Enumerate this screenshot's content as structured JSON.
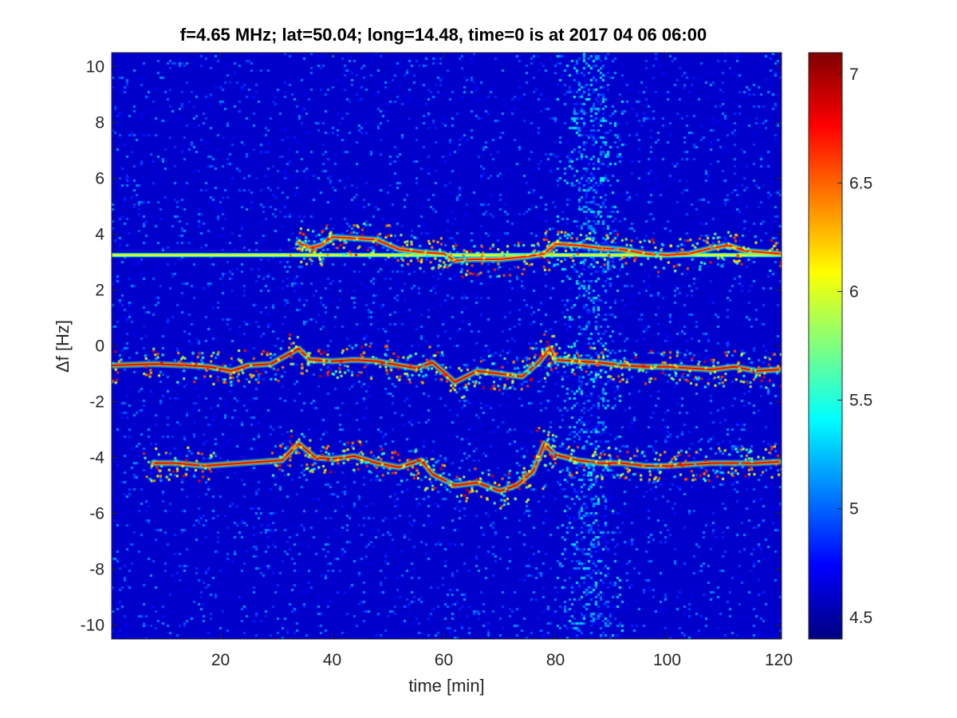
{
  "chart_data": {
    "type": "heatmap",
    "title": "f=4.65 MHz;  lat=50.04; long=14.48, time=0 is at 2017 04 06 06:00",
    "xlabel": "time [min]",
    "ylabel": "Δf [Hz]",
    "xlim": [
      0.5,
      120.5
    ],
    "ylim": [
      -10.5,
      10.5
    ],
    "x_ticks": [
      20,
      40,
      60,
      80,
      100,
      120
    ],
    "y_ticks": [
      -10,
      -8,
      -6,
      -4,
      -2,
      0,
      2,
      4,
      6,
      8,
      10
    ],
    "x_tick_labels": [
      "20",
      "40",
      "60",
      "80",
      "100",
      "120"
    ],
    "y_tick_labels": [
      "-10",
      "-8",
      "-6",
      "-4",
      "-2",
      "0",
      "2",
      "4",
      "6",
      "8",
      "10"
    ],
    "colorbar": {
      "colormap": "jet",
      "range": [
        4.4,
        7.1
      ],
      "ticks": [
        4.5,
        5,
        5.5,
        6,
        6.5,
        7
      ],
      "tick_labels": [
        "4.5",
        "5",
        "5.5",
        "6",
        "6.5",
        "7"
      ]
    },
    "background_value": 4.6,
    "features": [
      {
        "name": "constant line",
        "value": 6.0,
        "points": [
          [
            0.5,
            3.25
          ],
          [
            120.5,
            3.25
          ]
        ]
      },
      {
        "name": "upper trace",
        "value": 6.8,
        "points": [
          [
            34,
            3.7
          ],
          [
            36,
            3.5
          ],
          [
            38,
            3.6
          ],
          [
            40,
            3.9
          ],
          [
            44,
            3.85
          ],
          [
            48,
            3.8
          ],
          [
            52,
            3.45
          ],
          [
            56,
            3.35
          ],
          [
            60,
            3.3
          ],
          [
            62,
            3.05
          ],
          [
            65,
            3.1
          ],
          [
            70,
            3.1
          ],
          [
            75,
            3.2
          ],
          [
            78,
            3.3
          ],
          [
            80,
            3.65
          ],
          [
            84,
            3.6
          ],
          [
            88,
            3.5
          ],
          [
            92,
            3.45
          ],
          [
            96,
            3.3
          ],
          [
            100,
            3.25
          ],
          [
            104,
            3.3
          ],
          [
            108,
            3.5
          ],
          [
            111,
            3.6
          ],
          [
            114,
            3.4
          ],
          [
            120,
            3.3
          ]
        ]
      },
      {
        "name": "middle trace",
        "value": 6.9,
        "points": [
          [
            0.5,
            -0.7
          ],
          [
            8,
            -0.65
          ],
          [
            14,
            -0.7
          ],
          [
            18,
            -0.75
          ],
          [
            22,
            -0.9
          ],
          [
            25,
            -0.7
          ],
          [
            29,
            -0.65
          ],
          [
            34,
            -0.1
          ],
          [
            36,
            -0.5
          ],
          [
            40,
            -0.55
          ],
          [
            44,
            -0.5
          ],
          [
            48,
            -0.55
          ],
          [
            52,
            -0.7
          ],
          [
            55,
            -0.8
          ],
          [
            58,
            -0.6
          ],
          [
            62,
            -1.3
          ],
          [
            66,
            -0.9
          ],
          [
            70,
            -1.0
          ],
          [
            74,
            -1.1
          ],
          [
            77,
            -0.6
          ],
          [
            79,
            -0.1
          ],
          [
            80,
            -0.5
          ],
          [
            84,
            -0.55
          ],
          [
            88,
            -0.6
          ],
          [
            92,
            -0.7
          ],
          [
            96,
            -0.75
          ],
          [
            100,
            -0.75
          ],
          [
            104,
            -0.8
          ],
          [
            108,
            -0.85
          ],
          [
            112,
            -0.75
          ],
          [
            116,
            -0.9
          ],
          [
            120,
            -0.85
          ]
        ]
      },
      {
        "name": "lower trace",
        "value": 6.9,
        "points": [
          [
            8,
            -4.2
          ],
          [
            12,
            -4.2
          ],
          [
            17,
            -4.3
          ],
          [
            31,
            -4.1
          ],
          [
            34,
            -3.5
          ],
          [
            37,
            -4.0
          ],
          [
            40,
            -4.05
          ],
          [
            44,
            -3.95
          ],
          [
            48,
            -4.2
          ],
          [
            52,
            -4.35
          ],
          [
            56,
            -4.1
          ],
          [
            58,
            -4.6
          ],
          [
            62,
            -5.0
          ],
          [
            66,
            -4.9
          ],
          [
            70,
            -5.2
          ],
          [
            73,
            -5.0
          ],
          [
            76,
            -4.5
          ],
          [
            78,
            -3.5
          ],
          [
            80,
            -3.9
          ],
          [
            84,
            -4.1
          ],
          [
            88,
            -4.2
          ],
          [
            92,
            -4.2
          ],
          [
            96,
            -4.3
          ],
          [
            100,
            -4.3
          ],
          [
            104,
            -4.25
          ],
          [
            108,
            -4.2
          ],
          [
            112,
            -4.2
          ],
          [
            116,
            -4.2
          ],
          [
            120,
            -4.15
          ]
        ]
      },
      {
        "name": "noise band",
        "value": 5.1,
        "x_range": [
          80,
          92
        ],
        "y_range": [
          -10.5,
          10.5
        ]
      }
    ],
    "grid": false,
    "legend": "none"
  }
}
